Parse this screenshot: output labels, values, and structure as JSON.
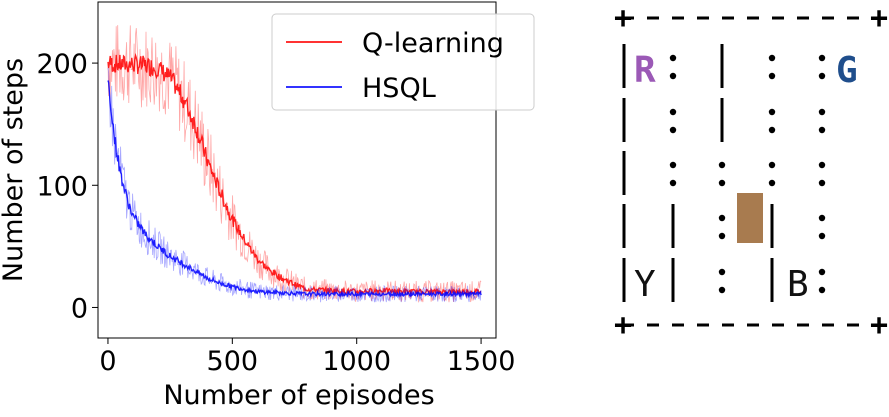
{
  "chart_data": {
    "type": "line",
    "xlabel": "Number of episodes",
    "ylabel": "Number of steps",
    "xlim": [
      -40,
      1560
    ],
    "ylim": [
      -25,
      250
    ],
    "xticks": [
      0,
      500,
      1000,
      1500
    ],
    "xtick_labels": [
      "0",
      "500",
      "1000",
      "1500"
    ],
    "yticks": [
      0,
      100,
      200
    ],
    "ytick_labels": [
      "0",
      "100",
      "200"
    ],
    "legend_position": "top-right",
    "grid": false,
    "series": [
      {
        "name": "Q-learning",
        "color": "#ff0000",
        "x": [
          0,
          50,
          100,
          150,
          200,
          250,
          300,
          350,
          400,
          450,
          500,
          550,
          600,
          650,
          700,
          750,
          800,
          900,
          1000,
          1100,
          1200,
          1300,
          1400,
          1500
        ],
        "values": [
          200,
          199,
          199,
          198,
          196,
          188,
          172,
          150,
          120,
          95,
          72,
          55,
          40,
          30,
          24,
          19,
          15,
          14,
          13,
          14,
          13,
          13,
          13,
          13
        ]
      },
      {
        "name": "HSQL",
        "color": "#0000ff",
        "x": [
          0,
          10,
          25,
          50,
          75,
          100,
          150,
          200,
          250,
          300,
          350,
          400,
          450,
          500,
          550,
          600,
          700,
          800,
          900,
          1000,
          1100,
          1200,
          1300,
          1400,
          1500
        ],
        "values": [
          185,
          170,
          140,
          110,
          90,
          75,
          60,
          50,
          42,
          36,
          30,
          24,
          20,
          17,
          15,
          13,
          12,
          11,
          11,
          11,
          11,
          11,
          11,
          11,
          11
        ]
      }
    ]
  },
  "taxi_grid": {
    "rows": [
      {
        "cells": [
          "R",
          ":",
          "",
          "|",
          "",
          ":",
          "",
          ":",
          "G"
        ]
      },
      {
        "cells": [
          "",
          ":",
          "",
          "|",
          "",
          ":",
          "",
          ":",
          ""
        ]
      },
      {
        "cells": [
          "",
          ":",
          "",
          ":",
          "",
          ":",
          "",
          ":",
          ""
        ]
      },
      {
        "cells": [
          "",
          "|",
          "",
          ":",
          "",
          "|",
          "",
          ":",
          ""
        ]
      },
      {
        "cells": [
          "Y",
          "|",
          "",
          ":",
          "",
          "|",
          "B",
          ":",
          ""
        ]
      }
    ],
    "labels": {
      "R": "R",
      "G": "G",
      "Y": "Y",
      "B": "B"
    },
    "colors": {
      "R": "#9b59b6",
      "G": "#1f4e8c",
      "Y": "#111111",
      "B": "#111111",
      "taxi": "#a87b4f"
    }
  }
}
